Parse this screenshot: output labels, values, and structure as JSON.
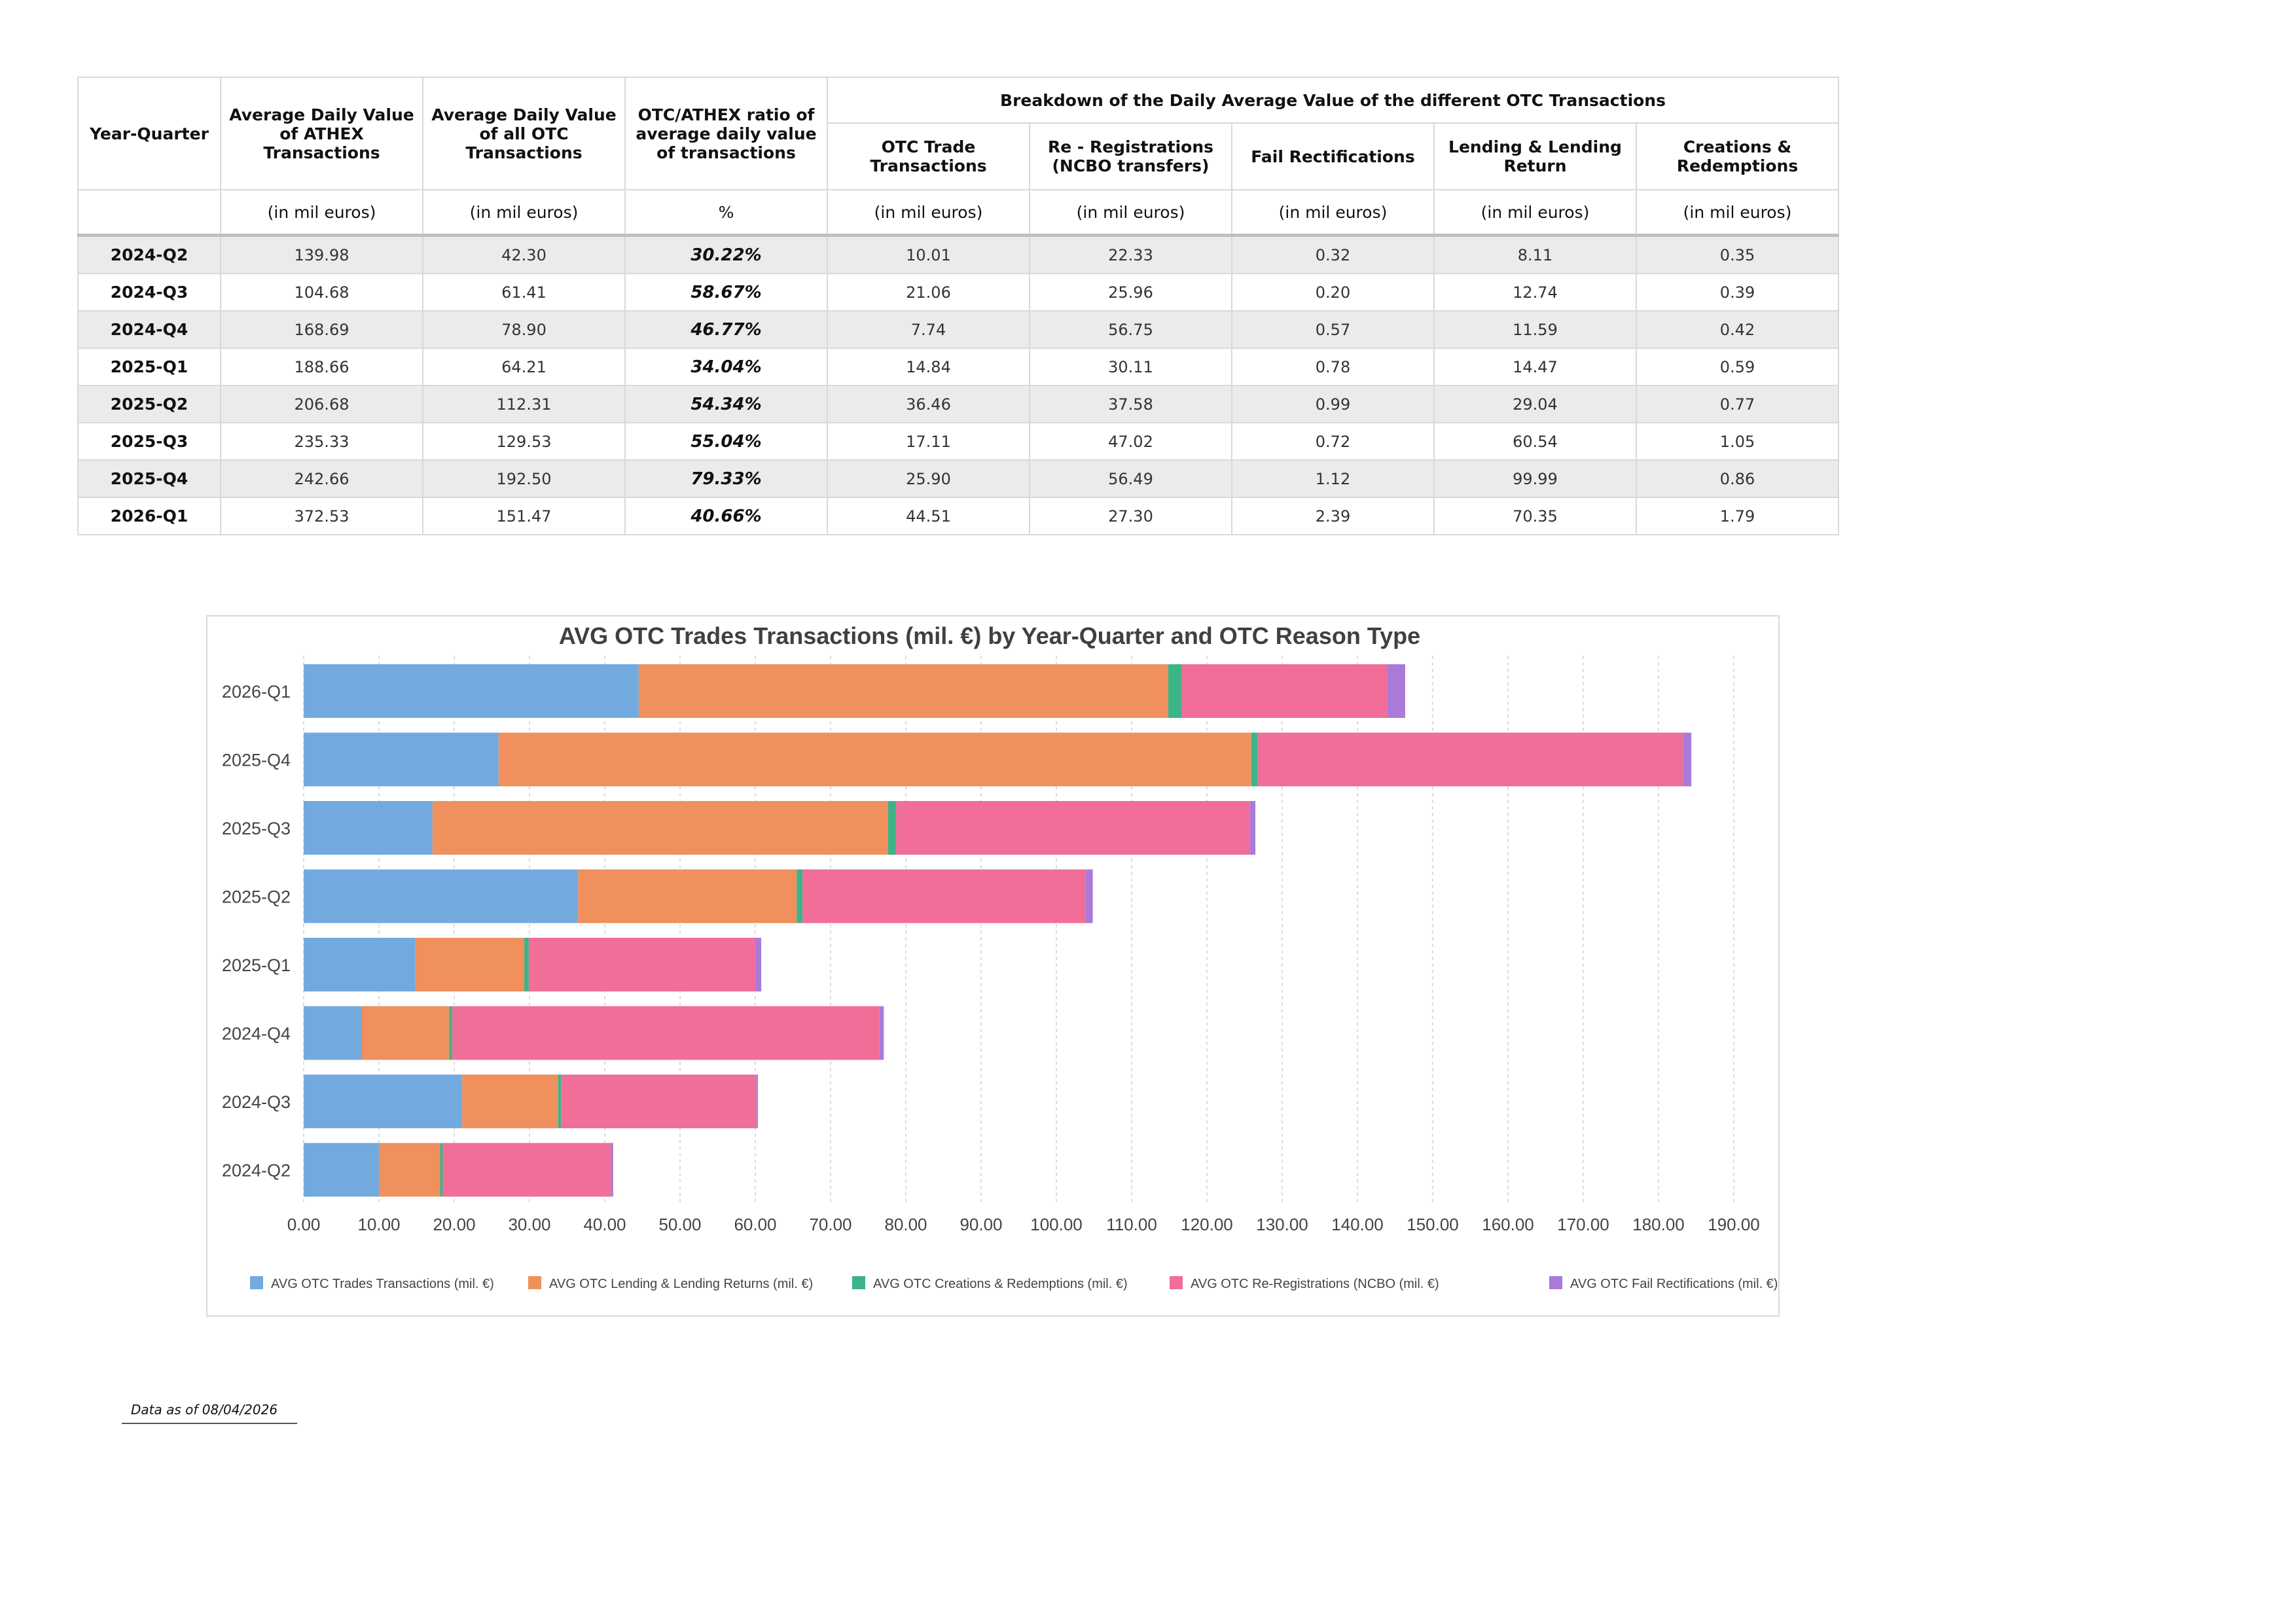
{
  "table": {
    "headers": {
      "year_quarter": "Year-Quarter",
      "athex": "Average Daily Value of ATHEX Transactions",
      "otc_all": "Average Daily Value of all OTC Transactions",
      "ratio": "OTC/ATHEX ratio of average daily value of transactions",
      "breakdown": "Breakdown of the Daily Average Value of the different OTC Transactions",
      "trade": "OTC Trade Transactions",
      "rereg": "Re - Registrations (NCBO transfers)",
      "fail": "Fail Rectifications",
      "lending": "Lending & Lending Return",
      "creations": "Creations & Redemptions"
    },
    "units": {
      "athex": "(in mil euros)",
      "otc_all": "(in mil euros)",
      "ratio": "%",
      "trade": "(in mil euros)",
      "rereg": "(in mil euros)",
      "fail": "(in mil euros)",
      "lending": "(in mil euros)",
      "creations": "(in mil euros)"
    },
    "rows": [
      {
        "yq": "2024-Q2",
        "athex": "139.98",
        "otc": "42.30",
        "ratio": "30.22%",
        "trade": "10.01",
        "rereg": "22.33",
        "fail": "0.32",
        "lending": "8.11",
        "creations": "0.35"
      },
      {
        "yq": "2024-Q3",
        "athex": "104.68",
        "otc": "61.41",
        "ratio": "58.67%",
        "trade": "21.06",
        "rereg": "25.96",
        "fail": "0.20",
        "lending": "12.74",
        "creations": "0.39"
      },
      {
        "yq": "2024-Q4",
        "athex": "168.69",
        "otc": "78.90",
        "ratio": "46.77%",
        "trade": "7.74",
        "rereg": "56.75",
        "fail": "0.57",
        "lending": "11.59",
        "creations": "0.42"
      },
      {
        "yq": "2025-Q1",
        "athex": "188.66",
        "otc": "64.21",
        "ratio": "34.04%",
        "trade": "14.84",
        "rereg": "30.11",
        "fail": "0.78",
        "lending": "14.47",
        "creations": "0.59"
      },
      {
        "yq": "2025-Q2",
        "athex": "206.68",
        "otc": "112.31",
        "ratio": "54.34%",
        "trade": "36.46",
        "rereg": "37.58",
        "fail": "0.99",
        "lending": "29.04",
        "creations": "0.77"
      },
      {
        "yq": "2025-Q3",
        "athex": "235.33",
        "otc": "129.53",
        "ratio": "55.04%",
        "trade": "17.11",
        "rereg": "47.02",
        "fail": "0.72",
        "lending": "60.54",
        "creations": "1.05"
      },
      {
        "yq": "2025-Q4",
        "athex": "242.66",
        "otc": "192.50",
        "ratio": "79.33%",
        "trade": "25.90",
        "rereg": "56.49",
        "fail": "1.12",
        "lending": "99.99",
        "creations": "0.86"
      },
      {
        "yq": "2026-Q1",
        "athex": "372.53",
        "otc": "151.47",
        "ratio": "40.66%",
        "trade": "44.51",
        "rereg": "27.30",
        "fail": "2.39",
        "lending": "70.35",
        "creations": "1.79"
      }
    ]
  },
  "chart_data": {
    "type": "bar",
    "orientation": "horizontal",
    "stacked": true,
    "title": "AVG OTC Trades Transactions (mil. €) by Year-Quarter and OTC Reason Type",
    "categories": [
      "2026-Q1",
      "2025-Q4",
      "2025-Q3",
      "2025-Q2",
      "2025-Q1",
      "2024-Q4",
      "2024-Q3",
      "2024-Q2"
    ],
    "xlim": [
      0,
      190
    ],
    "x_ticks": [
      0,
      10,
      20,
      30,
      40,
      50,
      60,
      70,
      80,
      90,
      100,
      110,
      120,
      130,
      140,
      150,
      160,
      170,
      180,
      190
    ],
    "x_tick_labels": [
      "0.00",
      "10.00",
      "20.00",
      "30.00",
      "40.00",
      "50.00",
      "60.00",
      "70.00",
      "80.00",
      "90.00",
      "100.00",
      "110.00",
      "120.00",
      "130.00",
      "140.00",
      "150.00",
      "160.00",
      "170.00",
      "180.00",
      "190.00"
    ],
    "grid": "vertical dashed",
    "legend_position": "bottom",
    "series": [
      {
        "name": "AVG OTC Trades Transactions (mil. €)",
        "color": "#72aadf",
        "values": [
          44.51,
          25.9,
          17.11,
          36.46,
          14.84,
          7.74,
          21.06,
          10.01
        ]
      },
      {
        "name": "AVG OTC Lending & Lending Returns (mil. €)",
        "color": "#ef905d",
        "values": [
          70.35,
          99.99,
          60.54,
          29.04,
          14.47,
          11.59,
          12.74,
          8.11
        ]
      },
      {
        "name": "AVG OTC Creations & Redemptions (mil. €)",
        "color": "#3cb487",
        "values": [
          1.79,
          0.86,
          1.05,
          0.77,
          0.59,
          0.42,
          0.39,
          0.35
        ]
      },
      {
        "name": "AVG OTC Re-Registrations (NCBO (mil. €)",
        "color": "#f06e97",
        "values": [
          27.3,
          56.49,
          47.02,
          37.58,
          30.11,
          56.75,
          25.96,
          22.33
        ]
      },
      {
        "name": "AVG OTC Fail Rectifications (mil. €)",
        "color": "#a97ad9",
        "values": [
          2.39,
          1.12,
          0.72,
          0.99,
          0.78,
          0.57,
          0.2,
          0.32
        ]
      }
    ]
  },
  "footnote": "Data as of 08/04/2026"
}
